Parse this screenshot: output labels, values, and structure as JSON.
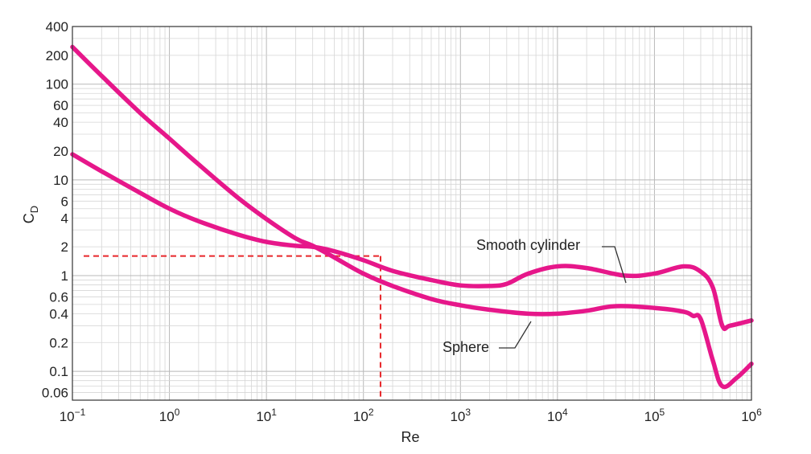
{
  "chart_data": {
    "type": "line",
    "title": "",
    "xlabel": "Re",
    "ylabel_main": "C",
    "ylabel_sub": "D",
    "x_scale": "log",
    "y_scale": "log",
    "xlim": [
      0.1,
      1000000
    ],
    "ylim": [
      0.05,
      400
    ],
    "grid": true,
    "x_ticks": [
      {
        "value": 0.1,
        "base": "10",
        "exp": "−1"
      },
      {
        "value": 1,
        "base": "10",
        "exp": "0"
      },
      {
        "value": 10,
        "base": "10",
        "exp": "1"
      },
      {
        "value": 100,
        "base": "10",
        "exp": "2"
      },
      {
        "value": 1000,
        "base": "10",
        "exp": "3"
      },
      {
        "value": 10000,
        "base": "10",
        "exp": "4"
      },
      {
        "value": 100000,
        "base": "10",
        "exp": "5"
      },
      {
        "value": 1000000,
        "base": "10",
        "exp": "6"
      }
    ],
    "y_ticks": [
      {
        "value": 400,
        "label": "400"
      },
      {
        "value": 200,
        "label": "200"
      },
      {
        "value": 100,
        "label": "100"
      },
      {
        "value": 60,
        "label": "60"
      },
      {
        "value": 40,
        "label": "40"
      },
      {
        "value": 20,
        "label": "20"
      },
      {
        "value": 10,
        "label": "10"
      },
      {
        "value": 6,
        "label": "6"
      },
      {
        "value": 4,
        "label": "4"
      },
      {
        "value": 2,
        "label": "2"
      },
      {
        "value": 1,
        "label": "1"
      },
      {
        "value": 0.6,
        "label": "0.6"
      },
      {
        "value": 0.4,
        "label": "0.4"
      },
      {
        "value": 0.2,
        "label": "0.2"
      },
      {
        "value": 0.1,
        "label": "0.1"
      },
      {
        "value": 0.06,
        "label": "0.06"
      }
    ],
    "series": [
      {
        "name": "Smooth cylinder",
        "color": "#e6178a",
        "x": [
          0.1,
          0.2,
          0.5,
          1,
          2,
          5,
          10,
          20,
          30,
          50,
          100,
          200,
          500,
          1000,
          2000,
          3000,
          5000,
          10000,
          20000,
          50000,
          100000,
          200000,
          300000,
          400000,
          500000,
          600000,
          1000000
        ],
        "y": [
          18.5,
          12.3,
          7.3,
          5.0,
          3.7,
          2.7,
          2.25,
          2.05,
          2.0,
          1.8,
          1.45,
          1.12,
          0.9,
          0.79,
          0.78,
          0.82,
          1.05,
          1.25,
          1.2,
          1.0,
          1.05,
          1.25,
          1.1,
          0.75,
          0.3,
          0.3,
          0.34
        ]
      },
      {
        "name": "Sphere",
        "color": "#e6178a",
        "x": [
          0.1,
          0.2,
          0.5,
          1,
          2,
          5,
          10,
          20,
          30,
          50,
          100,
          200,
          500,
          1000,
          2000,
          5000,
          10000,
          20000,
          40000,
          100000,
          200000,
          250000,
          300000,
          400000,
          500000,
          700000,
          1000000
        ],
        "y": [
          245,
          122,
          50,
          27,
          14.5,
          6.6,
          3.9,
          2.45,
          2.05,
          1.55,
          1.05,
          0.78,
          0.57,
          0.49,
          0.44,
          0.4,
          0.4,
          0.43,
          0.48,
          0.46,
          0.42,
          0.38,
          0.35,
          0.13,
          0.07,
          0.085,
          0.12
        ]
      }
    ],
    "annotations": [
      {
        "text": "Smooth cylinder",
        "target_series": "Smooth cylinder"
      },
      {
        "text": "Sphere",
        "target_series": "Sphere"
      }
    ],
    "reference_lines": {
      "color": "#e8262a",
      "x_value": 150,
      "y_value": 1.6
    }
  }
}
